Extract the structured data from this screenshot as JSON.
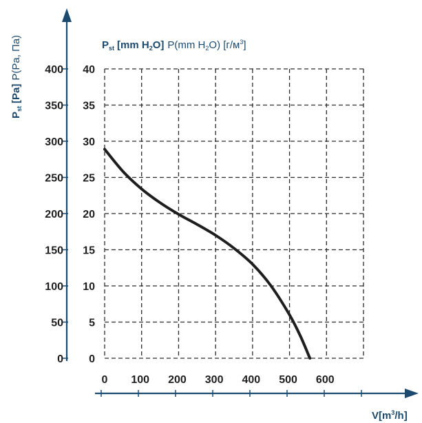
{
  "colors": {
    "accent": "#1b4a6e",
    "curve": "#1e1e1e",
    "grid": "#2a2a2a"
  },
  "labels": {
    "title_main": "P",
    "title_sub": "st",
    "title_unit_bold": "[mm H",
    "title_unit_bold_sub": "2",
    "title_unit_bold_end": "O]",
    "title_rest": "P(mm H",
    "title_rest_sub": "2",
    "title_rest_end": "O) [г/м",
    "title_rest_sup": "3",
    "title_rest_close": "]",
    "ylabel_main": "P",
    "ylabel_sub": "st",
    "ylabel_bold": "[Pa]",
    "ylabel_rest": "P(Pa, Па)",
    "xlabel_main": "V[m",
    "xlabel_sup": "3",
    "xlabel_end": "/h]"
  },
  "chart_data": {
    "type": "line",
    "title": "Pst [mm H2O] P(mm H2O) [г/м3]",
    "xlabel": "V[m3/h]",
    "ylabel": "Pst [Pa] P(Pa, Па)",
    "xlim": [
      0,
      700
    ],
    "ylim": [
      0,
      400
    ],
    "grid": true,
    "x_ticks": [
      "0",
      "100",
      "200",
      "300",
      "400",
      "500",
      "600"
    ],
    "y_ticks_pa": [
      "0",
      "50",
      "100",
      "150",
      "200",
      "250",
      "300",
      "350",
      "400"
    ],
    "y_ticks_mm": [
      "0",
      "5",
      "10",
      "15",
      "20",
      "25",
      "30",
      "35",
      "40"
    ],
    "series": [
      {
        "x": [
          0,
          50,
          100,
          150,
          200,
          250,
          300,
          350,
          400,
          450,
          500,
          530,
          555
        ],
        "y": [
          289,
          258,
          234,
          215,
          199,
          185,
          170,
          152,
          130,
          100,
          60,
          30,
          0
        ]
      }
    ]
  }
}
